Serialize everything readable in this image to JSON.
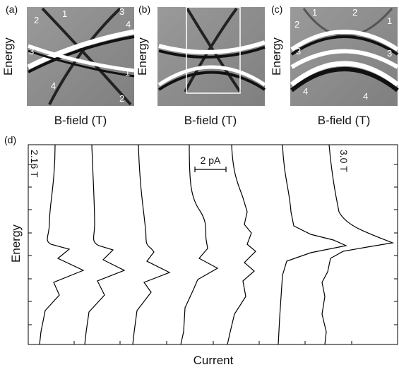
{
  "figure": {
    "panels": [
      {
        "label": "(a)",
        "y_label": "Energy",
        "x_label": "B-field (T)",
        "annotations": [
          "1",
          "2",
          "3",
          "4",
          "3",
          "1",
          "4",
          "2"
        ]
      },
      {
        "label": "(b)",
        "y_label": "Energy",
        "x_label": "B-field (T)"
      },
      {
        "label": "(c)",
        "y_label": "Energy",
        "x_label": "B-field (T)",
        "annotations": [
          "1",
          "2",
          "2",
          "1",
          "3",
          "3",
          "4",
          "4"
        ]
      }
    ],
    "panel_d": {
      "label": "(d)",
      "y_label": "Energy",
      "x_label": "Current",
      "first_field": "2.16 T",
      "last_field": "3.0 T",
      "scale_bar": "2 pA"
    }
  }
}
